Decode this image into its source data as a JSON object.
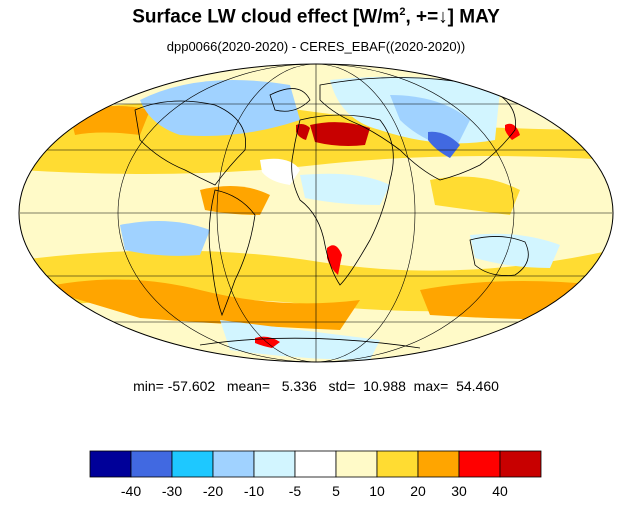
{
  "title": {
    "prefix": "Surface LW cloud effect [W/m",
    "superscript": "2",
    "suffix": ", +=↓]  MAY"
  },
  "subtitle": "dpp0066(2020-2020) - CERES_EBAF((2020-2020))",
  "stats": "min= -57.602   mean=   5.336   std=  10.988  max=  54.460",
  "colorbar": {
    "colors": [
      "#000099",
      "#4169e1",
      "#1ec8ff",
      "#a0d2ff",
      "#d2f5ff",
      "#ffffff",
      "#fffac8",
      "#ffdc32",
      "#ffa500",
      "#ff0000",
      "#c80000"
    ],
    "labels": [
      "-40",
      "-30",
      "-20",
      "-10",
      "-5",
      "5",
      "10",
      "20",
      "30",
      "40"
    ]
  },
  "map": {
    "projection": "Mollweide",
    "ocean_base_color": "#fffac8",
    "graticule_lat_step_deg": 30,
    "graticule_lon_step_deg": 60
  }
}
